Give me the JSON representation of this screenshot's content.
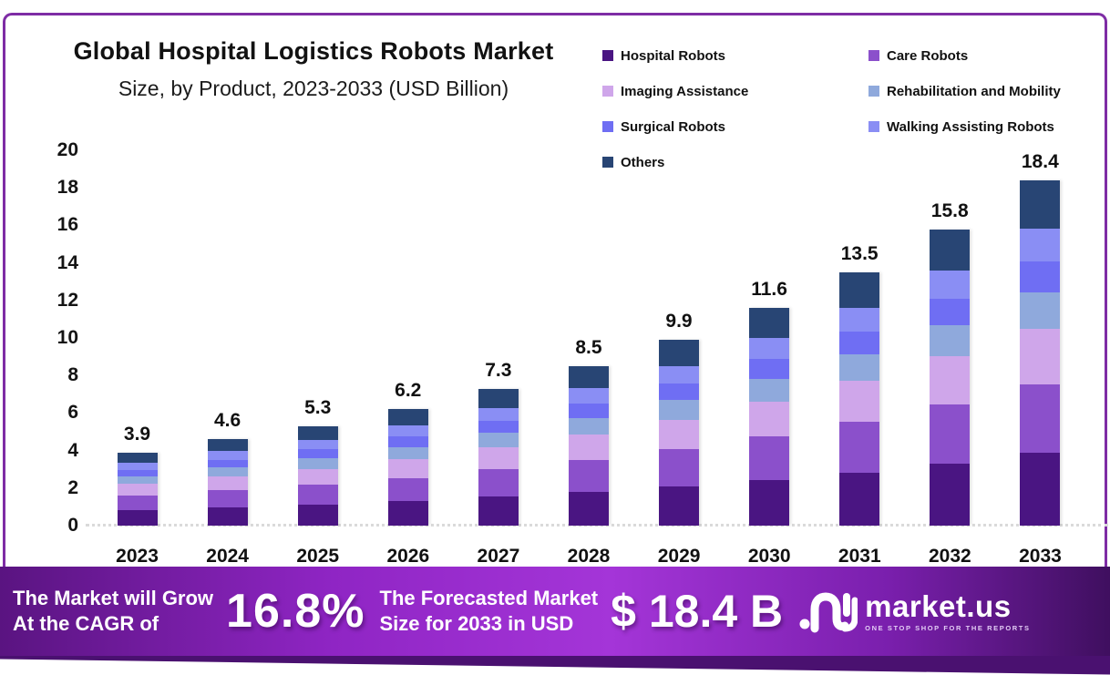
{
  "header": {
    "title": "Global Hospital Logistics Robots Market",
    "subtitle": "Size, by Product, 2023-2033 (USD Billion)"
  },
  "frame": {
    "border_color": "#7E2CA5",
    "banner_strip_color": "#4A1170"
  },
  "legend": {
    "columns": [
      [
        "Hospital Robots",
        "Imaging Assistance",
        "Surgical Robots",
        "Others"
      ],
      [
        "Care Robots",
        "Rehabilitation and Mobility",
        "Walking Assisting Robots"
      ]
    ]
  },
  "chart_data": {
    "type": "bar",
    "stacked": true,
    "title": "Global Hospital Logistics Robots Market Size, by Product, 2023-2033 (USD Billion)",
    "categories": [
      "2023",
      "2024",
      "2025",
      "2026",
      "2027",
      "2028",
      "2029",
      "2030",
      "2031",
      "2032",
      "2033"
    ],
    "totals": [
      3.9,
      4.6,
      5.3,
      6.2,
      7.3,
      8.5,
      9.9,
      11.6,
      13.5,
      15.8,
      18.4
    ],
    "series": [
      {
        "name": "Hospital Robots",
        "color": "#4A1582",
        "values": [
          0.82,
          0.97,
          1.11,
          1.3,
          1.53,
          1.79,
          2.08,
          2.44,
          2.84,
          3.32,
          3.86
        ]
      },
      {
        "name": "Care Robots",
        "color": "#8B50CB",
        "values": [
          0.78,
          0.92,
          1.06,
          1.24,
          1.46,
          1.7,
          1.98,
          2.32,
          2.7,
          3.16,
          3.68
        ]
      },
      {
        "name": "Imaging Assistance",
        "color": "#CFA6EA",
        "values": [
          0.62,
          0.74,
          0.85,
          0.99,
          1.17,
          1.36,
          1.58,
          1.86,
          2.16,
          2.53,
          2.94
        ]
      },
      {
        "name": "Rehabilitation and Mobility",
        "color": "#8FA9DC",
        "values": [
          0.41,
          0.48,
          0.56,
          0.65,
          0.77,
          0.89,
          1.04,
          1.22,
          1.42,
          1.66,
          1.93
        ]
      },
      {
        "name": "Surgical Robots",
        "color": "#6F6EF3",
        "values": [
          0.35,
          0.41,
          0.48,
          0.56,
          0.66,
          0.76,
          0.89,
          1.04,
          1.21,
          1.42,
          1.66
        ]
      },
      {
        "name": "Walking Assisting Robots",
        "color": "#8A8EF4",
        "values": [
          0.37,
          0.44,
          0.5,
          0.59,
          0.69,
          0.81,
          0.94,
          1.1,
          1.28,
          1.5,
          1.75
        ]
      },
      {
        "name": "Others",
        "color": "#284574",
        "values": [
          0.55,
          0.64,
          0.74,
          0.87,
          1.02,
          1.19,
          1.39,
          1.62,
          1.89,
          2.21,
          2.58
        ]
      }
    ],
    "xlabel": "",
    "ylabel": "",
    "ylim": [
      0,
      20
    ],
    "yticks": [
      0,
      2,
      4,
      6,
      8,
      10,
      12,
      14,
      16,
      18,
      20
    ],
    "grid": false,
    "legend_position": "top-right"
  },
  "banner": {
    "left_line1": "The Market will Grow",
    "left_line2": "At the CAGR of",
    "cagr_value": "16.8%",
    "mid_line1": "The Forecasted Market",
    "mid_line2": "Size for 2033 in USD",
    "forecast_value": "$ 18.4 B",
    "brand_name": "market.us",
    "brand_tagline": "ONE STOP SHOP FOR THE REPORTS"
  }
}
